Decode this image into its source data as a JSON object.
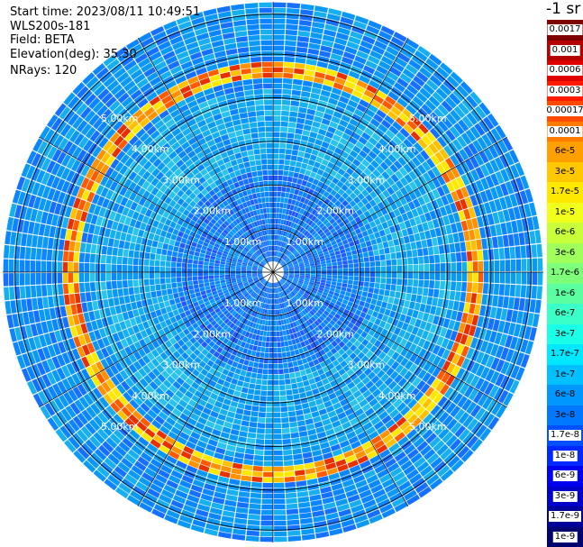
{
  "header": {
    "start_time": "Start time: 2023/08/11 10:49:51",
    "instrument": "WLS200s-181",
    "field": "Field: BETA",
    "elevation": "Elevation(deg): 35.30",
    "nrays": "NRays: 120"
  },
  "colorbar": {
    "unit": "-1 sr",
    "levels": [
      {
        "label": "0.0017",
        "color": "#800000"
      },
      {
        "label": "0.001",
        "color": "#b40000"
      },
      {
        "label": "0.0006",
        "color": "#e00000"
      },
      {
        "label": "0.0003",
        "color": "#ff1a00"
      },
      {
        "label": "0.00017",
        "color": "#ff4a00"
      },
      {
        "label": "0.0001",
        "color": "#ff7a00"
      },
      {
        "label": "6e-5",
        "color": "#ffa000"
      },
      {
        "label": "3e-5",
        "color": "#ffc800"
      },
      {
        "label": "1.7e-5",
        "color": "#ffe800"
      },
      {
        "label": "1e-5",
        "color": "#f2ff1a"
      },
      {
        "label": "6e-6",
        "color": "#c8ff3a"
      },
      {
        "label": "3e-6",
        "color": "#a0ff5a"
      },
      {
        "label": "1.7e-6",
        "color": "#7dff7a"
      },
      {
        "label": "1e-6",
        "color": "#5affa0"
      },
      {
        "label": "6e-7",
        "color": "#3affc8"
      },
      {
        "label": "3e-7",
        "color": "#1affe8"
      },
      {
        "label": "1.7e-7",
        "color": "#00e8ff"
      },
      {
        "label": "1e-7",
        "color": "#00c0ff"
      },
      {
        "label": "6e-8",
        "color": "#0098ff"
      },
      {
        "label": "3e-8",
        "color": "#0078ff"
      },
      {
        "label": "1.7e-8",
        "color": "#0050ff"
      },
      {
        "label": "1e-8",
        "color": "#0028ff"
      },
      {
        "label": "6e-9",
        "color": "#0000f0"
      },
      {
        "label": "3e-9",
        "color": "#0000c8"
      },
      {
        "label": "1.7e-9",
        "color": "#00009a"
      },
      {
        "label": "1e-9",
        "color": "#000070"
      }
    ]
  },
  "plot": {
    "range_labels": [
      "1.00km",
      "2.00km",
      "3.00km",
      "4.00km",
      "5.00km"
    ],
    "max_range_km": 6.2,
    "ray_count": 120
  }
}
